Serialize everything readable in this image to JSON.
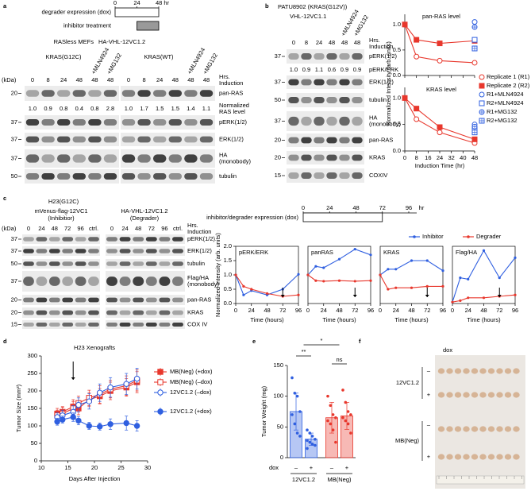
{
  "panel_letters": [
    "a",
    "b",
    "c",
    "d",
    "e",
    "f"
  ],
  "a": {
    "timeline": {
      "ticks": [
        0,
        24,
        {
          "value": 48,
          "label": "48 hr"
        }
      ],
      "degrader": "degrader expression (dox)",
      "inhibitor": "inhibitor treatment",
      "degrader_span": [
        0,
        48
      ],
      "inhibitor_span": [
        24,
        48
      ]
    },
    "cell_line": "RASless MEFs",
    "construct": "HA-VHL-12VC1.2",
    "groups": [
      "KRAS(G12C)",
      "KRAS(WT)"
    ],
    "treatments": [
      "+MLN4924",
      "+MG132"
    ],
    "kda": "(kDa)",
    "lanes": [
      "0",
      "8",
      "24",
      "48",
      "48",
      "48"
    ],
    "induction": [
      "Hrs.",
      "Induction"
    ],
    "rows": [
      [
        "pan-RAS"
      ],
      [
        "pERK(1/2)"
      ],
      [
        "ERK(1/2)"
      ],
      [
        "HA",
        "(monobody)"
      ],
      [
        "tubulin"
      ]
    ],
    "markers": [
      "20",
      "37",
      "37",
      "37",
      "50"
    ],
    "norm_label": [
      "Normalized",
      "RAS level"
    ],
    "norm_values": [
      [
        "1.0",
        "0.9",
        "0.8",
        "0.4",
        "0.8",
        "2.8"
      ],
      [
        "1.0",
        "1.7",
        "1.5",
        "1.5",
        "1.4",
        "1.1"
      ]
    ]
  },
  "b": {
    "cell_line": "PATU8902 (KRAS(G12V))",
    "construct": "VHL-12VC1.1",
    "treatments": [
      "+MLN4924",
      "+MG132"
    ],
    "lanes": [
      "0",
      "8",
      "24",
      "48",
      "48",
      "48"
    ],
    "induction": [
      "Hrs.",
      "Induction"
    ],
    "rows": [
      [
        "pERK(1/2)"
      ],
      [
        "ERK(1/2)"
      ],
      [
        "tubulin"
      ],
      [
        "HA",
        "(monobody)"
      ],
      [
        "pan-RAS"
      ],
      [
        "KRAS"
      ],
      [
        "COXIV"
      ]
    ],
    "markers": [
      "37",
      "37",
      "50",
      "37",
      "20",
      "20",
      "15"
    ],
    "ratio_label": "pERK/ERK",
    "ratio_values": [
      "1.0",
      "0.9",
      "1.1",
      "0.6",
      "0.9",
      "0.9"
    ]
  },
  "c": {
    "cell_line": "H23(G12C)",
    "inhibitor": [
      "mVenus-flag-12VC1",
      "(Inhibitior)"
    ],
    "degrader": [
      "HA-VHL-12VC1.2",
      "(Degrader)"
    ],
    "kda": "(kDa)",
    "lanes": [
      "0",
      "24",
      "48",
      "72",
      "96",
      "ctrl."
    ],
    "induction": [
      "Hrs.",
      "Induction"
    ],
    "rows": [
      [
        "pERK(1/2)"
      ],
      [
        "ERK(1/2)"
      ],
      [
        "tubulin"
      ],
      [
        "Flag/HA",
        "(monobody)"
      ],
      [
        "pan-RAS"
      ],
      [
        "KRAS"
      ],
      [
        "COX IV"
      ]
    ],
    "markers": [
      "37",
      "37",
      "50",
      "37",
      "20",
      "20",
      "15"
    ],
    "timeline": {
      "label": "inhibitor/degrader expression (dox)",
      "ticks": [
        0,
        24,
        48,
        72,
        96
      ],
      "unit": "hr",
      "span": [
        0,
        72
      ]
    }
  },
  "f": {
    "dox": "dox",
    "groups": [
      "12VC1.2",
      "MB(Neg)"
    ],
    "signs": [
      "–",
      "+"
    ]
  },
  "chart_data": [
    {
      "type": "line",
      "title": "pan-RAS level",
      "ylabel": "Normalized Intensity (arb. units)",
      "xlim": [
        0,
        48
      ],
      "ylim": [
        0,
        1.2
      ],
      "xticks": [
        0,
        8,
        16,
        24,
        32,
        40,
        48
      ],
      "yticks": [
        {
          "value": 0,
          "label": "0.0"
        },
        {
          "value": 0.5,
          "label": "0.5"
        },
        {
          "value": 1,
          "label": "1.0"
        }
      ],
      "series": [
        {
          "name": "Replicate 1 (R1)",
          "color": "#e8372c",
          "marker": "circle-open",
          "x": [
            0,
            8,
            24,
            48
          ],
          "values": [
            1.0,
            0.37,
            0.29,
            0.25
          ]
        },
        {
          "name": "Replicate 2 (R2)",
          "color": "#e8372c",
          "marker": "square",
          "x": [
            0,
            8,
            24,
            48
          ],
          "values": [
            1.0,
            0.7,
            0.63,
            0.68
          ]
        },
        {
          "name": "R1+MLN4924",
          "color": "#2f5fe0",
          "marker": "circle-open",
          "x": [
            48
          ],
          "values": [
            1.05
          ]
        },
        {
          "name": "R2+MLN4924",
          "color": "#2f5fe0",
          "marker": "square-open",
          "x": [
            48
          ],
          "values": [
            0.7
          ]
        },
        {
          "name": "R1+MG132",
          "color": "#2f5fe0",
          "marker": "circle-cross",
          "x": [
            48
          ],
          "values": [
            0.95
          ]
        },
        {
          "name": "R2+MG132",
          "color": "#2f5fe0",
          "marker": "square-cross",
          "x": [
            48
          ],
          "values": [
            0.53
          ]
        }
      ]
    },
    {
      "type": "line",
      "title": "KRAS level",
      "xlabel": "Induction Time (hr)",
      "xlim": [
        0,
        48
      ],
      "ylim": [
        0,
        1.2
      ],
      "xticks": [
        0,
        8,
        16,
        24,
        32,
        40,
        48
      ],
      "yticks": [
        {
          "value": 0,
          "label": "0.0"
        },
        {
          "value": 0.5,
          "label": "0.5"
        },
        {
          "value": 1,
          "label": "1.0"
        }
      ],
      "series": [
        {
          "color": "#e8372c",
          "marker": "circle-open",
          "x": [
            0,
            8,
            24,
            48
          ],
          "values": [
            1.0,
            0.6,
            0.35,
            0.15
          ]
        },
        {
          "color": "#e8372c",
          "marker": "square",
          "x": [
            0,
            8,
            24,
            48
          ],
          "values": [
            1.0,
            0.8,
            0.45,
            0.22
          ]
        },
        {
          "color": "#2f5fe0",
          "marker": "circle-open",
          "x": [
            48
          ],
          "values": [
            0.5
          ]
        },
        {
          "color": "#2f5fe0",
          "marker": "square-open",
          "x": [
            48
          ],
          "values": [
            0.42
          ]
        },
        {
          "color": "#2f5fe0",
          "marker": "circle-cross",
          "x": [
            48
          ],
          "values": [
            0.46
          ]
        },
        {
          "color": "#2f5fe0",
          "marker": "square-cross",
          "x": [
            48
          ],
          "values": [
            0.35
          ]
        }
      ]
    },
    {
      "type": "line",
      "title": "pERK/ERK",
      "ylabel": "Normalized Intensity (arb. units)",
      "xlabel": "Time (hours)",
      "x": [
        0,
        12,
        24,
        48,
        72,
        96
      ],
      "xlim": [
        0,
        96
      ],
      "ylim": [
        0,
        2
      ],
      "xticks": [
        0,
        24,
        48,
        72,
        96
      ],
      "yticks": [
        {
          "value": 0,
          "label": "0.0"
        },
        {
          "value": 0.5,
          "label": "0.5"
        },
        {
          "value": 1,
          "label": "1.0"
        },
        {
          "value": 1.5,
          "label": "1.5"
        },
        {
          "value": 2,
          "label": "2.0"
        }
      ],
      "arrow_at": 72,
      "series": [
        {
          "name": "Inhibitor",
          "color": "#2f5fe0",
          "marker": "dot",
          "values": [
            1.0,
            0.3,
            0.45,
            0.3,
            0.5,
            1.02
          ]
        },
        {
          "name": "Degrader",
          "color": "#e8372c",
          "marker": "dot",
          "values": [
            1.0,
            0.6,
            0.5,
            0.35,
            0.25,
            0.3
          ]
        }
      ]
    },
    {
      "type": "line",
      "title": "panRAS",
      "xlabel": "Time (hours)",
      "x": [
        0,
        12,
        24,
        48,
        72,
        96
      ],
      "xlim": [
        0,
        96
      ],
      "ylim": [
        0,
        2
      ],
      "xticks": [
        0,
        24,
        48,
        72,
        96
      ],
      "arrow_at": 72,
      "series": [
        {
          "color": "#2f5fe0",
          "marker": "dot",
          "values": [
            1.0,
            1.3,
            1.25,
            1.55,
            1.9,
            1.7
          ]
        },
        {
          "color": "#e8372c",
          "marker": "dot",
          "values": [
            1.0,
            0.8,
            0.78,
            0.8,
            0.78,
            0.8
          ]
        }
      ]
    },
    {
      "type": "line",
      "title": "KRAS",
      "xlabel": "Time (hours)",
      "x": [
        0,
        12,
        24,
        48,
        72,
        96
      ],
      "xlim": [
        0,
        96
      ],
      "ylim": [
        0,
        2
      ],
      "xticks": [
        0,
        24,
        48,
        72,
        96
      ],
      "arrow_at": 72,
      "series": [
        {
          "color": "#2f5fe0",
          "marker": "dot",
          "values": [
            1.0,
            1.2,
            1.2,
            1.5,
            1.5,
            1.15
          ]
        },
        {
          "color": "#e8372c",
          "marker": "dot",
          "values": [
            1.0,
            0.5,
            0.55,
            0.55,
            0.6,
            0.6
          ]
        }
      ]
    },
    {
      "type": "line",
      "title": "Flag/HA",
      "xlabel": "Time (hours)",
      "x": [
        0,
        12,
        24,
        48,
        72,
        96
      ],
      "xlim": [
        0,
        96
      ],
      "ylim": [
        0,
        2
      ],
      "xticks": [
        0,
        24,
        48,
        72,
        96
      ],
      "arrow_at": 72,
      "series": [
        {
          "color": "#2f5fe0",
          "marker": "dot",
          "values": [
            0.05,
            0.9,
            0.85,
            1.85,
            0.9,
            1.6
          ]
        },
        {
          "color": "#e8372c",
          "marker": "dot",
          "values": [
            0.05,
            0.1,
            0.2,
            0.2,
            0.25,
            0.3
          ]
        }
      ]
    },
    {
      "type": "line",
      "title": "H23 Xenografts",
      "xlabel": "Days After Injection",
      "ylabel": "Tumor Size (mm³)",
      "x": [
        13,
        14,
        16,
        17,
        19,
        21,
        23,
        26,
        28
      ],
      "xlim": [
        10,
        30
      ],
      "ylim": [
        0,
        300
      ],
      "xticks": [
        10,
        15,
        20,
        25,
        30
      ],
      "yticks": [
        0,
        50,
        100,
        150,
        200,
        250,
        300
      ],
      "arrow_at": 16,
      "series": [
        {
          "name": "MB(Neg) (+dox)",
          "color": "#e8372c",
          "marker": "square",
          "values": [
            135,
            140,
            155,
            150,
            175,
            185,
            200,
            210,
            225
          ],
          "errors": [
            15,
            15,
            20,
            18,
            20,
            22,
            25,
            25,
            30
          ]
        },
        {
          "name": "MB(Neg) (–dox)",
          "color": "#e8372c",
          "marker": "square-open",
          "values": [
            130,
            135,
            150,
            165,
            180,
            190,
            205,
            215,
            230
          ],
          "errors": [
            15,
            18,
            20,
            20,
            22,
            25,
            25,
            28,
            30
          ]
        },
        {
          "name": "12VC1.2 (–dox)",
          "color": "#2f5fe0",
          "marker": "circle-open",
          "values": [
            125,
            130,
            140,
            160,
            170,
            195,
            210,
            220,
            235
          ],
          "errors": [
            12,
            15,
            18,
            20,
            22,
            25,
            28,
            30,
            30
          ]
        },
        {
          "name": "12VC1.2 (+dox)",
          "color": "#2f5fe0",
          "marker": "circle",
          "values": [
            112,
            118,
            125,
            115,
            100,
            98,
            105,
            108,
            100
          ],
          "errors": [
            10,
            10,
            12,
            12,
            10,
            10,
            15,
            20,
            15
          ]
        }
      ]
    },
    {
      "type": "bar",
      "ylabel": "Tumor Weight (mg)",
      "xlabel": "dox",
      "categories": [
        "–",
        "+",
        "–",
        "+"
      ],
      "group_labels": [
        "12VC1.2",
        "MB(Neg)"
      ],
      "colors": [
        "#2f5fe0",
        "#2f5fe0",
        "#e8372c",
        "#e8372c"
      ],
      "ylim": [
        0,
        150
      ],
      "yticks": [
        0,
        50,
        100,
        150
      ],
      "values": [
        75,
        30,
        65,
        68
      ],
      "errors": [
        30,
        10,
        25,
        22
      ],
      "points": [
        [
          130,
          105,
          100,
          75,
          70,
          55,
          40,
          35
        ],
        [
          45,
          40,
          35,
          30,
          28,
          25,
          22,
          20,
          15
        ],
        [
          100,
          85,
          70,
          65,
          60,
          55,
          45,
          25
        ],
        [
          110,
          90,
          75,
          70,
          65,
          60,
          55,
          40
        ]
      ],
      "annotations": [
        "**",
        "*",
        "ns"
      ]
    }
  ]
}
